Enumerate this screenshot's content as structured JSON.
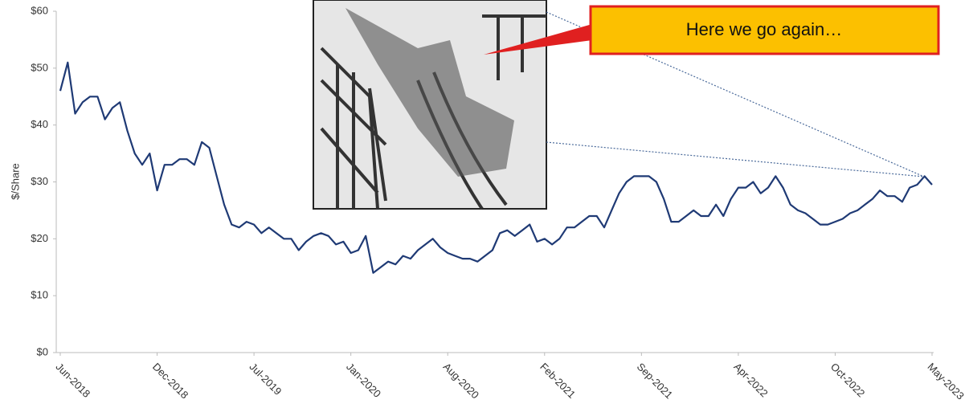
{
  "chart_data": {
    "type": "line",
    "y_label": "$/Share",
    "annotation": "Here we go again…",
    "categories": [
      "Jun-2018",
      null,
      null,
      null,
      null,
      null,
      null,
      null,
      null,
      null,
      null,
      null,
      null,
      "Dec-2018",
      null,
      null,
      null,
      null,
      null,
      null,
      null,
      null,
      null,
      null,
      null,
      null,
      "Jul-2019",
      null,
      null,
      null,
      null,
      null,
      null,
      null,
      null,
      null,
      null,
      null,
      null,
      "Jan-2020",
      null,
      null,
      null,
      null,
      null,
      null,
      null,
      null,
      null,
      null,
      null,
      null,
      "Aug-2020",
      null,
      null,
      null,
      null,
      null,
      null,
      null,
      null,
      null,
      null,
      null,
      null,
      "Feb-2021",
      null,
      null,
      null,
      null,
      null,
      null,
      null,
      null,
      null,
      null,
      null,
      null,
      "Sep-2021",
      null,
      null,
      null,
      null,
      null,
      null,
      null,
      null,
      null,
      null,
      null,
      null,
      "Apr-2022",
      null,
      null,
      null,
      null,
      null,
      null,
      null,
      null,
      null,
      null,
      null,
      null,
      "Oct-2022",
      null,
      null,
      null,
      null,
      null,
      null,
      null,
      null,
      null,
      null,
      null,
      null,
      "May-2023"
    ],
    "values": [
      46,
      51,
      42,
      44,
      45,
      45,
      41,
      43,
      44,
      39,
      35,
      33,
      35,
      28.5,
      33,
      33,
      34,
      34,
      33,
      37,
      36,
      31,
      26,
      22.5,
      22,
      23,
      22.5,
      21,
      22,
      21,
      20,
      20,
      18,
      19.5,
      20.5,
      21,
      20.5,
      19,
      19.5,
      17.5,
      18,
      20.5,
      14,
      15,
      16,
      15.5,
      17,
      16.5,
      18,
      19,
      20,
      18.5,
      17.5,
      17,
      16.5,
      16.5,
      16,
      17,
      18,
      21,
      21.5,
      20.5,
      21.5,
      22.5,
      19.5,
      20,
      19,
      20,
      22,
      22,
      23,
      24,
      24,
      22,
      25,
      28,
      30,
      31,
      31,
      31,
      30,
      27,
      23,
      23,
      24,
      25,
      24,
      24,
      26,
      24,
      27,
      29,
      29,
      30,
      28,
      29,
      31,
      29,
      26,
      25,
      24.5,
      23.5,
      22.5,
      22.5,
      23,
      23.5,
      24.5,
      25,
      26,
      27,
      28.5,
      27.5,
      27.5,
      26.5,
      29,
      29.5,
      31,
      29.5
    ],
    "color": "#1f3a75",
    "ylim": [
      0,
      60
    ],
    "yticks": [
      {
        "value": 0,
        "label": "$0"
      },
      {
        "value": 10,
        "label": "$10"
      },
      {
        "value": 20,
        "label": "$20"
      },
      {
        "value": 30,
        "label": "$30"
      },
      {
        "value": 40,
        "label": "$40"
      },
      {
        "value": 50,
        "label": "$50"
      },
      {
        "value": 60,
        "label": "$60"
      }
    ],
    "grid": false
  }
}
